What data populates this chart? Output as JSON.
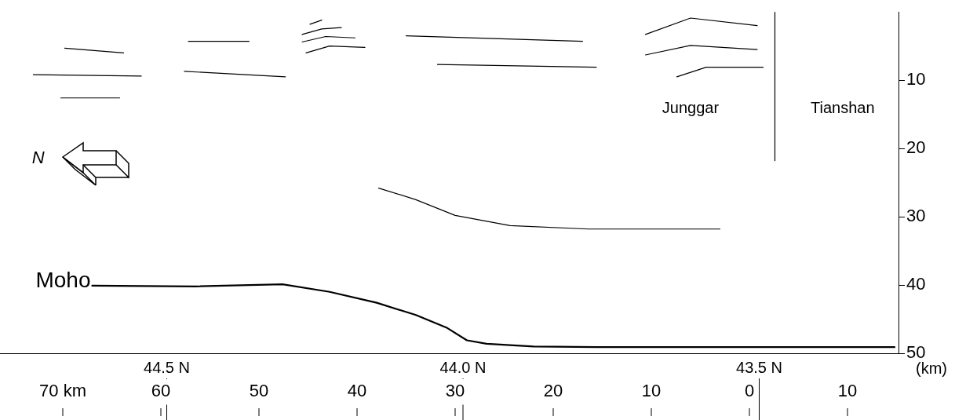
{
  "chart_data": {
    "type": "line",
    "ylabel": "(km)",
    "xticks": [
      {
        "value": 70,
        "label": "70 km"
      },
      60,
      50,
      40,
      30,
      20,
      10,
      0,
      {
        "value": -10,
        "label": "10"
      }
    ],
    "xlim": [
      76.4,
      -15.2
    ],
    "ylim": [
      50,
      0
    ],
    "yticks": [
      10,
      20,
      30,
      40,
      50
    ],
    "grid": false,
    "legend": false,
    "marker": "none",
    "line_style": "solid",
    "series": [
      {
        "color": "#000000",
        "x": [
          69.8,
          63.8
        ],
        "values": [
          5.3,
          6.0
        ]
      },
      {
        "color": "#000000",
        "x": [
          73.0,
          62.0
        ],
        "values": [
          9.2,
          9.4
        ]
      },
      {
        "color": "#000000",
        "x": [
          70.2,
          64.2
        ],
        "values": [
          12.6,
          12.6
        ]
      },
      {
        "color": "#000000",
        "x": [
          57.2,
          51.0
        ],
        "values": [
          4.3,
          4.3
        ]
      },
      {
        "color": "#000000",
        "x": [
          57.6,
          47.3
        ],
        "values": [
          8.7,
          9.5
        ]
      },
      {
        "color": "#000000",
        "x": [
          44.8,
          43.6
        ],
        "values": [
          1.8,
          1.2
        ]
      },
      {
        "color": "#000000",
        "x": [
          45.6,
          43.6,
          41.6
        ],
        "values": [
          3.3,
          2.5,
          2.3
        ]
      },
      {
        "color": "#000000",
        "x": [
          45.6,
          43.2,
          40.2
        ],
        "values": [
          4.4,
          3.6,
          3.8
        ]
      },
      {
        "color": "#000000",
        "x": [
          45.2,
          42.8,
          39.2
        ],
        "values": [
          6.0,
          5.0,
          5.2
        ]
      },
      {
        "color": "#000000",
        "x": [
          35.0,
          17.0
        ],
        "values": [
          3.5,
          4.3
        ]
      },
      {
        "color": "#000000",
        "x": [
          31.8,
          15.6
        ],
        "values": [
          7.7,
          8.1
        ]
      },
      {
        "color": "#000000",
        "x": [
          10.6,
          6.0,
          -0.8
        ],
        "values": [
          3.3,
          0.9,
          2.0
        ]
      },
      {
        "color": "#000000",
        "x": [
          10.6,
          6.0,
          -0.8
        ],
        "values": [
          6.3,
          4.9,
          5.5
        ]
      },
      {
        "color": "#000000",
        "x": [
          7.4,
          4.4,
          -1.4
        ],
        "values": [
          9.5,
          8.1,
          8.1
        ]
      },
      {
        "color": "#000000",
        "x": [
          -2.6,
          -2.6
        ],
        "values": [
          0,
          21.8
        ]
      },
      {
        "color": "#000000",
        "x": [
          37.8,
          34.0,
          30.0,
          24.4,
          16.4,
          3.0
        ],
        "values": [
          25.8,
          27.5,
          29.8,
          31.3,
          31.8,
          31.8
        ]
      },
      {
        "color": "#000000",
        "x": [
          67.0,
          56.4,
          47.6,
          42.8,
          38.0,
          34.0,
          30.8,
          28.8,
          26.8,
          22.0,
          15.6,
          -14.8
        ],
        "values": [
          40.1,
          40.2,
          39.9,
          41.0,
          42.6,
          44.4,
          46.3,
          48.1,
          48.6,
          49.0,
          49.1,
          49.1
        ]
      }
    ],
    "ref_lines": [
      {
        "axis": "x",
        "value": 59.4,
        "label": "44.5 N"
      },
      {
        "axis": "x",
        "value": 29.2,
        "label": "44.0 N"
      },
      {
        "axis": "x",
        "value": -1.0,
        "label": "43.5 N"
      }
    ],
    "annotations": [
      {
        "text": "Moho",
        "x": 67.0,
        "y": 40.1
      },
      "Junggar",
      "Tianshan",
      "N"
    ]
  }
}
